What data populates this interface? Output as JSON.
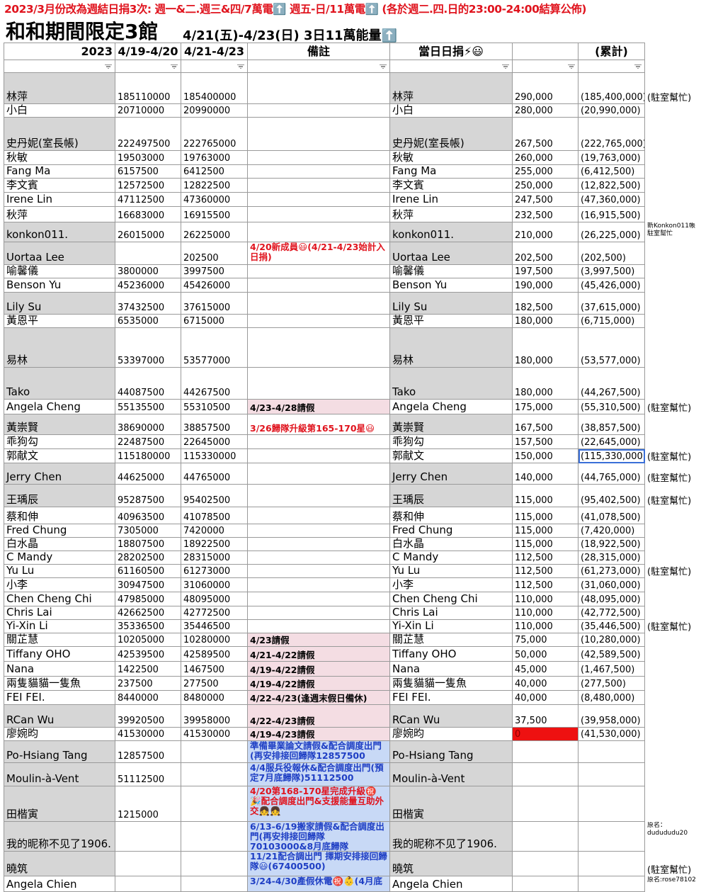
{
  "header": {
    "notice": "2023/3月份改為週結日捐3次: 週一&二.週三&四/7萬電⬆️ 週五-日/11萬電⬆️ (各於週二.四.日的23:00-24:00結算公佈)",
    "title": "和和期間限定3館",
    "subtitle": "4/21(五)-4/23(日) 3日11萬能量⬆️"
  },
  "table": {
    "columns": [
      "2023",
      "4/19-4/20",
      "4/21-4/23",
      "備註",
      "當日日捐⚡😃",
      null,
      "(累計)",
      null
    ],
    "rows": [
      [
        "林萍",
        "185110000",
        "185400000",
        null,
        "林萍",
        "290,000",
        "(185,400,000)",
        "(駐室幫忙)"
      ],
      [
        "小白",
        "20710000",
        "20990000",
        null,
        "小白",
        "280,000",
        "(20,990,000)",
        null
      ],
      [
        "史丹妮(室長帳)",
        "222497500",
        "222765000",
        null,
        "史丹妮(室長帳)",
        "267,500",
        "(222,765,000)",
        null
      ],
      [
        "秋敏",
        "19503000",
        "19763000",
        null,
        "秋敏",
        "260,000",
        "(19,763,000)",
        null
      ],
      [
        "Fang Ma",
        "6157500",
        "6412500",
        null,
        "Fang Ma",
        "255,000",
        "(6,412,500)",
        null
      ],
      [
        "李文賓",
        "12572500",
        "12822500",
        null,
        "李文賓",
        "250,000",
        "(12,822,500)",
        null
      ],
      [
        "Irene Lin",
        "47112500",
        "47360000",
        null,
        "Irene Lin",
        "247,500",
        "(47,360,000)",
        null
      ],
      [
        "秋萍",
        "16683000",
        "16915500",
        null,
        "秋萍",
        "232,500",
        "(16,915,500)",
        null
      ],
      [
        "konkon011.",
        "26015000",
        "26225000",
        null,
        "konkon011.",
        "210,000",
        "(26,225,000)",
        "新Konkon011帳 駐室幫忙"
      ],
      [
        "Uortaa Lee",
        null,
        "202500",
        "4/20新成員😃(4/21-4/23始計入日捐)",
        "Uortaa Lee",
        "202,500",
        "(202,500)",
        null
      ],
      [
        "喻馨儀",
        "3800000",
        "3997500",
        null,
        "喻馨儀",
        "197,500",
        "(3,997,500)",
        null
      ],
      [
        "Benson Yu",
        "45236000",
        "45426000",
        null,
        "Benson Yu",
        "190,000",
        "(45,426,000)",
        null
      ],
      [
        "Lily Su",
        "37432500",
        "37615000",
        null,
        "Lily Su",
        "182,500",
        "(37,615,000)",
        null
      ],
      [
        "黃恩平",
        "6535000",
        "6715000",
        null,
        "黃恩平",
        "180,000",
        "(6,715,000)",
        null
      ],
      [
        "易林",
        "53397000",
        "53577000",
        null,
        "易林",
        "180,000",
        "(53,577,000)",
        null
      ],
      [
        "Tako",
        "44087500",
        "44267500",
        null,
        "Tako",
        "180,000",
        "(44,267,500)",
        null
      ],
      [
        "Angela Cheng",
        "55135500",
        "55310500",
        "4/23-4/28請假",
        "Angela Cheng",
        "175,000",
        "(55,310,500)",
        "(駐室幫忙)"
      ],
      [
        "黃崇賢",
        "38690000",
        "38857500",
        "3/26歸隊升級第165-170星😃",
        "黃崇賢",
        "167,500",
        "(38,857,500)",
        null
      ],
      [
        "乖狗勾",
        "22487500",
        "22645000",
        null,
        "乖狗勾",
        "157,500",
        "(22,645,000)",
        null
      ],
      [
        "郭献文",
        "115180000",
        "115330000",
        null,
        "郭献文",
        "150,000",
        "(115,330,000)",
        "(駐室幫忙)"
      ],
      [
        "Jerry Chen",
        "44625000",
        "44765000",
        null,
        "Jerry Chen",
        "140,000",
        "(44,765,000)",
        "(駐室幫忙)"
      ],
      [
        "王瑀辰",
        "95287500",
        "95402500",
        null,
        "王瑀辰",
        "115,000",
        "(95,402,500)",
        "(駐室幫忙)"
      ],
      [
        "蔡和伸",
        "40963500",
        "41078500",
        null,
        "蔡和伸",
        "115,000",
        "(41,078,500)",
        null
      ],
      [
        "Fred Chung",
        "7305000",
        "7420000",
        null,
        "Fred Chung",
        "115,000",
        "(7,420,000)",
        null
      ],
      [
        "白水晶",
        "18807500",
        "18922500",
        null,
        "白水晶",
        "115,000",
        "(18,922,500)",
        null
      ],
      [
        "C Mandy",
        "28202500",
        "28315000",
        null,
        "C Mandy",
        "112,500",
        "(28,315,000)",
        null
      ],
      [
        "Yu Lu",
        "61160500",
        "61273000",
        null,
        "Yu Lu",
        "112,500",
        "(61,273,000)",
        "(駐室幫忙)"
      ],
      [
        "小李",
        "30947500",
        "31060000",
        null,
        "小李",
        "112,500",
        "(31,060,000)",
        null
      ],
      [
        "Chen Cheng Chi",
        "47985000",
        "48095000",
        null,
        "Chen Cheng Chi",
        "110,000",
        "(48,095,000)",
        null
      ],
      [
        "Chris Lai",
        "42662500",
        "42772500",
        null,
        "Chris Lai",
        "110,000",
        "(42,772,500)",
        null
      ],
      [
        "Yi-Xin Li",
        "35336500",
        "35446500",
        null,
        "Yi-Xin Li",
        "110,000",
        "(35,446,500)",
        "(駐室幫忙)"
      ],
      [
        "關芷慧",
        "10205000",
        "10280000",
        "4/23請假",
        "關芷慧",
        "75,000",
        "(10,280,000)",
        null
      ],
      [
        "Tiffany OHO",
        "42539500",
        "42589500",
        "4/21-4/22請假",
        "Tiffany OHO",
        "50,000",
        "(42,589,500)",
        null
      ],
      [
        "Nana",
        "1422500",
        "1467500",
        "4/19-4/22請假",
        "Nana",
        "45,000",
        "(1,467,500)",
        null
      ],
      [
        "兩隻貓貓一隻魚",
        "237500",
        "277500",
        "4/19-4/22請假",
        "兩隻貓貓一隻魚",
        "40,000",
        "(277,500)",
        null
      ],
      [
        "FEI FEI.",
        "8440000",
        "8480000",
        "4/22-4/23(逢週末假日備休)",
        "FEI FEI.",
        "40,000",
        "(8,480,000)",
        null
      ],
      [
        "RCan Wu",
        "39920500",
        "39958000",
        "4/22-4/23請假",
        "RCan Wu",
        "37,500",
        "(39,958,000)",
        null
      ],
      [
        "廖婉昀",
        "41530000",
        "41530000",
        "4/19-4/23請假",
        "廖婉昀",
        "0",
        "(41,530,000)",
        null
      ],
      [
        "Po-Hsiang Tang",
        "12857500",
        null,
        "準備畢業論文請假&配合調度出門(再安排接回歸隊12857500",
        "Po-Hsiang Tang",
        null,
        null,
        null
      ],
      [
        "Moulin-à-Vent",
        "51112500",
        null,
        "4/4服兵役報休&配合調度出門(預定7月底歸隊)51112500",
        "Moulin-à-Vent",
        null,
        null,
        null
      ],
      [
        "田楷寅",
        "1215000",
        null,
        "4/20第168-170星完成升級㊗️🎉配合調度出門&支援能量互助外交👧👧",
        "田楷寅",
        null,
        null,
        null
      ],
      [
        "我的昵称不见了1906.",
        null,
        null,
        "6/13-6/19搬家請假&配合調度出門(再安排接回歸隊70103000&8月底歸隊",
        "我的昵称不见了1906.",
        null,
        null,
        "原名：dudududu20"
      ],
      [
        "曉筑",
        null,
        null,
        "11/21配合調出門 擇期安排接回歸隊😃(67400500)",
        "曉筑",
        null,
        null,
        "(駐室幫忙)"
      ],
      [
        "Angela Chien",
        null,
        null,
        "3/24-4/30產假休電㊗️👶(4月底",
        "Angela Chien",
        null,
        null,
        "原名:rose78102"
      ]
    ]
  }
}
